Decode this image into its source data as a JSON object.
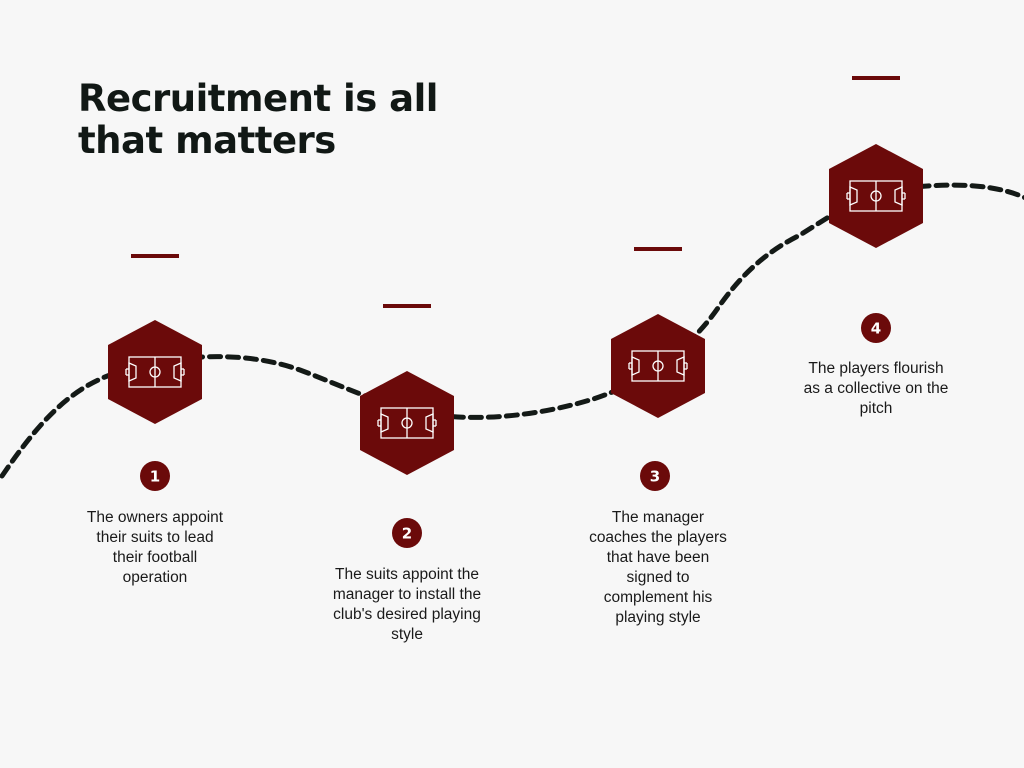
{
  "title": {
    "line1": "Recruitment is all",
    "line2": "that matters"
  },
  "colors": {
    "accent": "#6b0a0a",
    "path": "#141a17",
    "text": "#111815",
    "background": "#f7f7f7"
  },
  "steps": [
    {
      "number": "1",
      "icon": "football-pitch-icon",
      "lines": [
        "The owners appoint",
        "their suits to lead",
        "their football",
        "operation"
      ]
    },
    {
      "number": "2",
      "icon": "football-pitch-icon",
      "lines": [
        "The suits appoint the",
        "manager to install the",
        "club's desired playing",
        "style"
      ]
    },
    {
      "number": "3",
      "icon": "football-pitch-icon",
      "lines": [
        "The manager",
        "coaches the players",
        "that have been",
        "signed to",
        "complement his",
        "playing style"
      ]
    },
    {
      "number": "4",
      "icon": "football-pitch-icon",
      "lines": [
        "The players flourish",
        "as a collective on the",
        "pitch"
      ]
    }
  ]
}
